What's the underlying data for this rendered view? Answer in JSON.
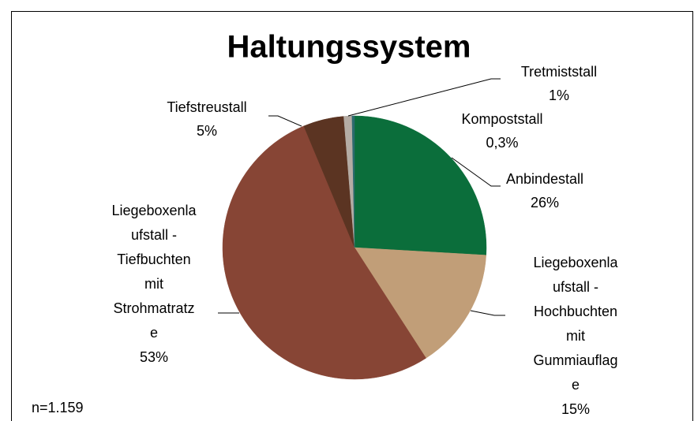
{
  "chart_data": {
    "type": "pie",
    "title": "Haltungssystem",
    "note": "n=1.159",
    "categories": [
      "Anbindestall",
      "Liegeboxenlaufstall - Hochbuchten mit Gummiauflage",
      "Liegeboxenlaufstall - Tiefbuchten mit Strohmatratze",
      "Tiefstreustall",
      "Tretmiststall",
      "Kompoststall"
    ],
    "values": [
      26,
      15,
      53,
      5,
      1,
      0.3
    ],
    "value_labels": [
      "26%",
      "15%",
      "53%",
      "5%",
      "1%",
      "0,3%"
    ],
    "colors": [
      "#0b6e3b",
      "#c19e78",
      "#874535",
      "#5b3422",
      "#b5aca4",
      "#2d6a6e"
    ]
  }
}
